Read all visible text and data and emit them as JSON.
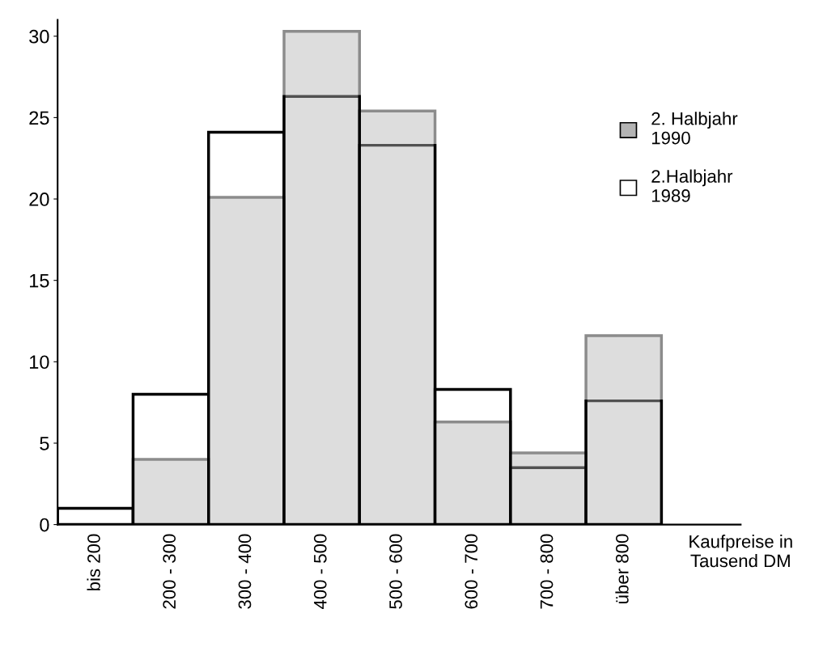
{
  "chart_data": {
    "type": "bar",
    "categories": [
      "bis 200",
      "200 - 300",
      "300 - 400",
      "400 - 500",
      "500 - 600",
      "600 - 700",
      "700 - 800",
      "über 800"
    ],
    "series": [
      {
        "name": "2. Halbjahr\n1990",
        "color": "#b4b4b4",
        "values": [
          null,
          4.0,
          20.1,
          30.3,
          25.4,
          6.3,
          4.4,
          11.6
        ]
      },
      {
        "name": "2.Halbjahr\n1989",
        "color": "#ffffff",
        "values": [
          1.0,
          8.0,
          24.1,
          26.3,
          23.3,
          8.3,
          3.5,
          7.6
        ]
      }
    ],
    "xlabel": "Kaufpreise in\nTausend DM",
    "ylim": [
      0,
      31
    ],
    "yticks": [
      0,
      5,
      10,
      15,
      20,
      25,
      30
    ],
    "grid": false,
    "legend": "right"
  }
}
